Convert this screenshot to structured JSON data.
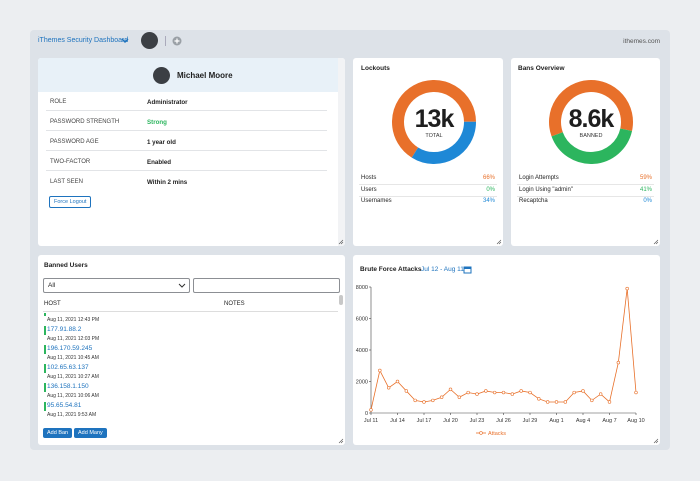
{
  "header": {
    "title": "iThemes Security Dashboard",
    "site": "ithemes.com"
  },
  "user": {
    "name": "Michael Moore",
    "rows": [
      {
        "label": "ROLE",
        "value": "Administrator"
      },
      {
        "label": "PASSWORD STRENGTH",
        "value": "Strong"
      },
      {
        "label": "PASSWORD AGE",
        "value": "1 year old"
      },
      {
        "label": "TWO-FACTOR",
        "value": "Enabled"
      },
      {
        "label": "LAST SEEN",
        "value": "Within 2 mins"
      }
    ],
    "button": "Force Logout"
  },
  "lockouts": {
    "title": "Lockouts",
    "total": "13k",
    "total_label": "TOTAL",
    "rows": [
      {
        "name": "Hosts",
        "value": 66,
        "value_label": "66%",
        "color": "#e8702a"
      },
      {
        "name": "Users",
        "value": 0,
        "value_label": "0%",
        "color": "#2cb55e"
      },
      {
        "name": "Usernames",
        "value": 34,
        "value_label": "34%",
        "color": "#1e88d6"
      }
    ]
  },
  "bans": {
    "title": "Bans Overview",
    "total": "8.6k",
    "total_label": "BANNED",
    "rows": [
      {
        "name": "Login Attempts",
        "value": 59,
        "value_label": "59%",
        "color": "#e8702a"
      },
      {
        "name": "Login Using \"admin\"",
        "value": 41,
        "value_label": "41%",
        "color": "#2cb55e"
      },
      {
        "name": "Recaptcha",
        "value": 0,
        "value_label": "0%",
        "color": "#1e88d6"
      }
    ]
  },
  "banned_users": {
    "title": "Banned Users",
    "filter": "All",
    "columns": [
      "HOST",
      "NOTES"
    ],
    "entries": [
      {
        "date": "Aug 11, 2021 12:43 PM"
      },
      {
        "host": "177.91.88.2",
        "date": "Aug 11, 2021 12:03 PM"
      },
      {
        "host": "196.170.59.245",
        "date": "Aug 11, 2021 10:45 AM"
      },
      {
        "host": "102.65.63.137",
        "date": "Aug 11, 2021 10:27 AM"
      },
      {
        "host": "136.158.1.150",
        "date": "Aug 11, 2021 10:06 AM"
      },
      {
        "host": "95.65.54.81",
        "date": "Aug 11, 2021 9:53 AM"
      }
    ],
    "buttons": [
      "Add Ban",
      "Add Many"
    ]
  },
  "brute_force": {
    "type": "line",
    "title": "Brute Force Attacks",
    "range": "Jul 12 - Aug 11",
    "categories": [
      "Jul 11",
      null,
      null,
      "Jul 14",
      null,
      null,
      "Jul 17",
      null,
      null,
      "Jul 20",
      null,
      null,
      "Jul 23",
      null,
      null,
      "Jul 26",
      null,
      null,
      "Jul 29",
      null,
      null,
      "Aug 1",
      null,
      null,
      "Aug 4",
      null,
      null,
      "Aug 7",
      null,
      null,
      "Aug 10"
    ],
    "series": [
      {
        "name": "Attacks",
        "color": "#e8702a",
        "values": [
          200,
          2700,
          1600,
          2000,
          1400,
          800,
          700,
          800,
          1000,
          1500,
          1000,
          1300,
          1200,
          1400,
          1300,
          1300,
          1200,
          1400,
          1300,
          900,
          700,
          700,
          700,
          1300,
          1400,
          800,
          1200,
          700,
          3200,
          7900,
          1300
        ]
      }
    ],
    "ylim": [
      0,
      8000
    ],
    "yticks": [
      0,
      2000,
      4000,
      6000,
      8000
    ]
  }
}
